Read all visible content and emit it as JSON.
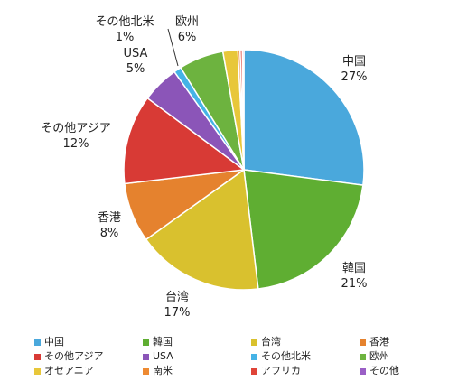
{
  "chart_data": {
    "type": "pie",
    "slices": [
      {
        "label": "中国",
        "value": 27,
        "value_text": "27%",
        "color": "#4aa8dc"
      },
      {
        "label": "韓国",
        "value": 21,
        "value_text": "21%",
        "color": "#5fae32"
      },
      {
        "label": "台湾",
        "value": 17,
        "value_text": "17%",
        "color": "#d9c12e"
      },
      {
        "label": "香港",
        "value": 8,
        "value_text": "8%",
        "color": "#e5822e"
      },
      {
        "label": "その他アジア",
        "value": 12,
        "value_text": "12%",
        "color": "#d83a35"
      },
      {
        "label": "USA",
        "value": 5,
        "value_text": "5%",
        "color": "#8b55b8"
      },
      {
        "label": "その他北米",
        "value": 1,
        "value_text": "1%",
        "color": "#45b3e6"
      },
      {
        "label": "欧州",
        "value": 6,
        "value_text": "6%",
        "color": "#6db33f"
      },
      {
        "label": "オセアニア",
        "value": 2,
        "value_text": "",
        "color": "#e8c73a"
      },
      {
        "label": "南米",
        "value": 0.3,
        "value_text": "",
        "color": "#ee8a32"
      },
      {
        "label": "アフリカ",
        "value": 0.3,
        "value_text": "",
        "color": "#df4438"
      },
      {
        "label": "その他",
        "value": 0.2,
        "value_text": "",
        "color": "#9a5fc6"
      }
    ],
    "legend_position": "bottom"
  }
}
